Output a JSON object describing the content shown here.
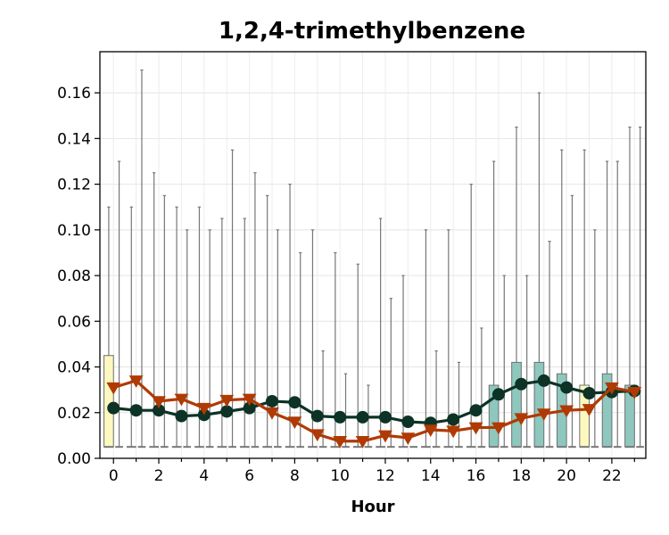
{
  "chart_data": {
    "type": "box",
    "title": "1,2,4-trimethylbenzene",
    "xlabel": "Hour",
    "ylabel": "",
    "ylim": [
      0,
      0.178
    ],
    "xlim": [
      -0.6,
      23.5
    ],
    "yticks": [
      0.0,
      0.02,
      0.04,
      0.06,
      0.08,
      0.1,
      0.12,
      0.14,
      0.16
    ],
    "xtick_labels": [
      0,
      2,
      4,
      6,
      8,
      10,
      12,
      14,
      16,
      18,
      20,
      22
    ],
    "grid": true,
    "legend": "none",
    "hours": [
      0,
      1,
      2,
      3,
      4,
      5,
      6,
      7,
      8,
      9,
      10,
      11,
      12,
      13,
      14,
      15,
      16,
      17,
      18,
      19,
      20,
      21,
      22,
      23
    ],
    "boxes": {
      "box_colors": {
        "teal": "#8ec7bd",
        "yellow": "#fcf8bf",
        "none": "none"
      },
      "box_color_keys": [
        "yellow",
        "none",
        "none",
        "none",
        "none",
        "none",
        "none",
        "none",
        "none",
        "none",
        "none",
        "none",
        "none",
        "none",
        "none",
        "none",
        "none",
        "teal",
        "teal",
        "teal",
        "teal",
        "yellow",
        "teal",
        "teal"
      ],
      "q1": [
        0.005,
        0.005,
        0.005,
        0.005,
        0.005,
        0.005,
        0.005,
        0.005,
        0.005,
        0.005,
        0.005,
        0.005,
        0.005,
        0.005,
        0.005,
        0.005,
        0.005,
        0.005,
        0.005,
        0.005,
        0.005,
        0.005,
        0.005,
        0.005
      ],
      "q3": [
        0.045,
        0.005,
        0.005,
        0.005,
        0.005,
        0.005,
        0.005,
        0.005,
        0.005,
        0.005,
        0.005,
        0.005,
        0.005,
        0.005,
        0.005,
        0.005,
        0.005,
        0.032,
        0.042,
        0.042,
        0.037,
        0.032,
        0.037,
        0.032
      ],
      "median": [
        0.005,
        0.005,
        0.005,
        0.005,
        0.005,
        0.005,
        0.005,
        0.005,
        0.005,
        0.005,
        0.005,
        0.005,
        0.005,
        0.005,
        0.005,
        0.005,
        0.005,
        0.005,
        0.005,
        0.005,
        0.005,
        0.005,
        0.005,
        0.005
      ],
      "whisker_low": [
        0.005,
        0.005,
        0.005,
        0.005,
        0.005,
        0.005,
        0.005,
        0.005,
        0.005,
        0.005,
        0.005,
        0.005,
        0.005,
        0.005,
        0.005,
        0.005,
        0.005,
        0.005,
        0.005,
        0.005,
        0.005,
        0.005,
        0.005,
        0.005
      ],
      "whisker_high_left": [
        0.11,
        0.11,
        0.125,
        0.11,
        0.11,
        0.105,
        0.105,
        0.115,
        0.12,
        0.1,
        0.09,
        0.085,
        0.105,
        0.08,
        0.1,
        0.1,
        0.12,
        0.13,
        0.145,
        0.16,
        0.135,
        0.135,
        0.13,
        0.145
      ],
      "whisker_high_right": [
        0.13,
        0.17,
        0.115,
        0.1,
        0.1,
        0.135,
        0.125,
        0.1,
        0.09,
        0.047,
        0.037,
        0.032,
        0.07,
        null,
        0.047,
        0.042,
        0.057,
        0.08,
        0.08,
        0.095,
        0.115,
        0.1,
        0.13,
        0.145
      ]
    },
    "series": [
      {
        "name": "",
        "color": "#0c3325",
        "marker": "circle",
        "values": [
          0.022,
          0.021,
          0.021,
          0.0185,
          0.019,
          0.0205,
          0.022,
          0.025,
          0.0245,
          0.0185,
          0.018,
          0.018,
          0.018,
          0.016,
          0.0155,
          0.017,
          0.021,
          0.028,
          0.0325,
          0.034,
          0.031,
          0.0285,
          0.029,
          0.0295
        ]
      },
      {
        "name": "",
        "color": "#b03a03",
        "marker": "triangle-down",
        "values": [
          0.031,
          0.034,
          0.025,
          0.026,
          0.022,
          0.0255,
          0.026,
          0.02,
          0.016,
          0.0105,
          0.0075,
          0.0075,
          0.01,
          0.009,
          0.0125,
          0.012,
          0.0135,
          0.0135,
          0.0175,
          0.0195,
          0.021,
          0.0215,
          0.031,
          0.029
        ]
      }
    ]
  }
}
